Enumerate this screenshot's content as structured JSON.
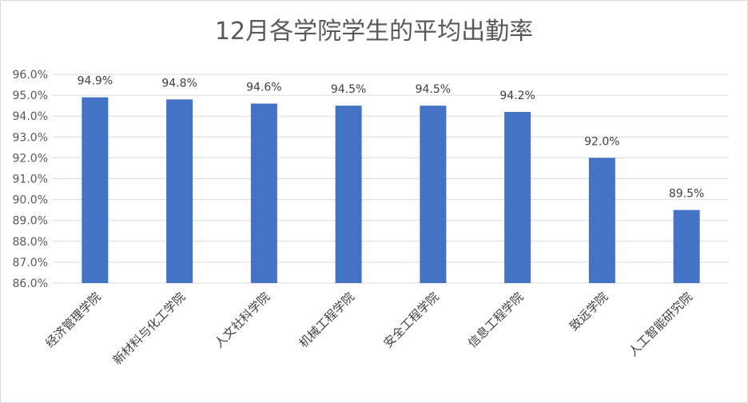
{
  "chart_data": {
    "type": "bar",
    "title": "12月各学院学生的平均出勤率",
    "categories": [
      "经济管理学院",
      "新材料与化工学院",
      "人文社科学院",
      "机械工程学院",
      "安全工程学院",
      "信息工程学院",
      "致远学院",
      "人工智能研究院"
    ],
    "values": [
      94.9,
      94.8,
      94.6,
      94.5,
      94.5,
      94.2,
      92.0,
      89.5
    ],
    "data_labels": [
      "94.9%",
      "94.8%",
      "94.6%",
      "94.5%",
      "94.5%",
      "94.2%",
      "92.0%",
      "89.5%"
    ],
    "ylim": [
      86.0,
      96.0
    ],
    "yticks": [
      "86.0%",
      "87.0%",
      "88.0%",
      "89.0%",
      "90.0%",
      "91.0%",
      "92.0%",
      "93.0%",
      "94.0%",
      "95.0%",
      "96.0%"
    ],
    "xlabel": "",
    "ylabel": "",
    "grid": true,
    "bar_color": "#4472c4",
    "grid_color": "#d9d9d9"
  }
}
